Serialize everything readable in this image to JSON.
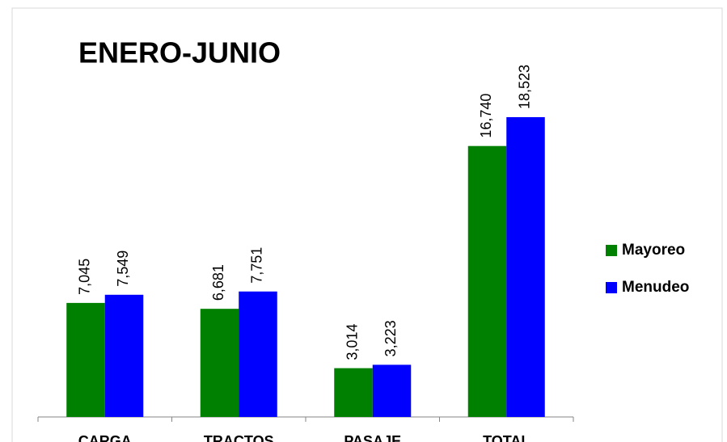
{
  "chart_data": {
    "type": "bar",
    "title": "ENERO-JUNIO",
    "categories": [
      "CARGA",
      "TRACTOS",
      "PASAJE",
      "TOTAL"
    ],
    "series": [
      {
        "name": "Mayoreo",
        "color": "#008000",
        "values": [
          7045,
          6681,
          3014,
          16740
        ],
        "value_labels": [
          "7,045",
          "6,681",
          "3,014",
          "16,740"
        ]
      },
      {
        "name": "Menudeo",
        "color": "#0000ff",
        "values": [
          7549,
          7751,
          3223,
          18523
        ],
        "value_labels": [
          "7,549",
          "7,751",
          "3,223",
          "18,523"
        ]
      }
    ],
    "ylim": [
      0,
      20000
    ],
    "legend": "right"
  }
}
